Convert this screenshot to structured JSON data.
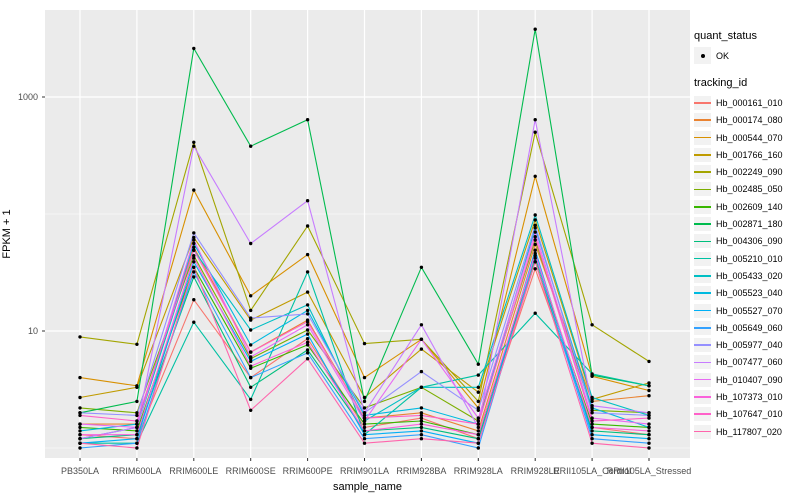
{
  "chart_data": {
    "type": "line",
    "title": "",
    "xlabel": "sample_name",
    "ylabel": "FPKM + 1",
    "y_scale": "log10",
    "ylim": [
      0.82,
      5500
    ],
    "grid": true,
    "legend_position": "right",
    "panel_bg": "#EBEBEB",
    "gridline_color": "#FFFFFF",
    "point_color": "#000000",
    "y_axis_ticks": [
      {
        "label": "1000",
        "value": 1000
      },
      {
        "label": "10",
        "value": 10
      }
    ],
    "y_minor_gridlines": [
      1,
      100
    ],
    "categories": [
      "PB350LA",
      "RRIM600LA",
      "RRIM600LE",
      "RRIM600SE",
      "RRIM600PE",
      "RRIM901LA",
      "RRIM928BA",
      "RRIM928LA",
      "RRIM928LE",
      "RRII105LA_Control",
      "RRII105LA_Stressed"
    ],
    "series": [
      {
        "name": "Hb_000161_010",
        "color": "#F8766D",
        "values": [
          1.3,
          1.2,
          18.5,
          4.0,
          8.6,
          1.5,
          1.8,
          1.2,
          34,
          1.5,
          1.3
        ]
      },
      {
        "name": "Hb_000174_080",
        "color": "#EA8331",
        "values": [
          1.6,
          1.6,
          52,
          6.6,
          12.4,
          1.8,
          2.0,
          1.4,
          55,
          2.5,
          2.8
        ]
      },
      {
        "name": "Hb_000544_070",
        "color": "#D89000",
        "values": [
          4.0,
          3.4,
          160,
          20,
          45,
          4.0,
          8.5,
          2.2,
          210,
          4.1,
          3.1
        ]
      },
      {
        "name": "Hb_001766_160",
        "color": "#C09B00",
        "values": [
          2.7,
          3.3,
          63,
          12.4,
          21.5,
          2.7,
          7.0,
          3.0,
          89,
          2.6,
          3.6
        ]
      },
      {
        "name": "Hb_002249_090",
        "color": "#A3A500",
        "values": [
          8.9,
          7.7,
          410,
          15,
          79,
          7.8,
          8.5,
          2.5,
          500,
          11.3,
          5.5
        ]
      },
      {
        "name": "Hb_002485_050",
        "color": "#7CAE00",
        "values": [
          2.2,
          2.0,
          44,
          5.8,
          10.2,
          2.2,
          3.3,
          1.7,
          60,
          2.1,
          2.0
        ]
      },
      {
        "name": "Hb_002609_140",
        "color": "#39B600",
        "values": [
          1.5,
          1.4,
          35,
          4.8,
          7.6,
          1.6,
          1.7,
          1.3,
          42,
          1.6,
          1.5
        ]
      },
      {
        "name": "Hb_002871_180",
        "color": "#00BB4E",
        "values": [
          2.0,
          2.5,
          2600,
          380,
          640,
          2.5,
          35,
          5.2,
          3800,
          4.2,
          3.4
        ]
      },
      {
        "name": "Hb_004306_090",
        "color": "#00BF7D",
        "values": [
          1.2,
          1.3,
          29,
          3.3,
          6.9,
          1.4,
          1.5,
          1.2,
          39,
          1.4,
          1.3
        ]
      },
      {
        "name": "Hb_005210_010",
        "color": "#00C1A3",
        "values": [
          1.1,
          1.1,
          11.9,
          2.6,
          32,
          1.3,
          3.3,
          4.2,
          14.2,
          4.3,
          3.4
        ]
      },
      {
        "name": "Hb_005433_020",
        "color": "#00BFC4",
        "values": [
          1.2,
          1.5,
          49,
          10.2,
          16.7,
          1.7,
          3.3,
          3.3,
          98,
          2.7,
          1.9
        ]
      },
      {
        "name": "Hb_005523_040",
        "color": "#00BAE0",
        "values": [
          1.4,
          1.6,
          56,
          7.6,
          15.0,
          1.9,
          2.2,
          1.6,
          76,
          2.2,
          1.5
        ]
      },
      {
        "name": "Hb_005527_070",
        "color": "#00B0F6",
        "values": [
          1.1,
          1.2,
          39,
          5.5,
          9.4,
          1.3,
          1.4,
          1.1,
          49,
          1.3,
          1.2
        ]
      },
      {
        "name": "Hb_005649_060",
        "color": "#35A2FF",
        "values": [
          1.0,
          1.1,
          32,
          4.0,
          6.5,
          1.2,
          1.3,
          1.0,
          44,
          1.2,
          1.1
        ]
      },
      {
        "name": "Hb_005977_040",
        "color": "#9590FF",
        "values": [
          2.0,
          1.9,
          69,
          12.9,
          14.0,
          2.0,
          4.5,
          2.1,
          80,
          2.0,
          1.9
        ]
      },
      {
        "name": "Hb_007477_060",
        "color": "#C77CFF",
        "values": [
          1.2,
          1.5,
          380,
          56,
          130,
          2.0,
          11.3,
          1.5,
          640,
          2.3,
          2.0
        ]
      },
      {
        "name": "Hb_010407_090",
        "color": "#E76BF3",
        "values": [
          1.6,
          1.5,
          60,
          6.0,
          11.3,
          1.7,
          8.5,
          1.8,
          70,
          1.8,
          1.6
        ]
      },
      {
        "name": "Hb_107373_010",
        "color": "#FA62DB",
        "values": [
          1.3,
          1.3,
          42,
          5.0,
          8.0,
          1.4,
          1.6,
          1.3,
          46,
          1.5,
          1.4
        ]
      },
      {
        "name": "Hb_107647_010",
        "color": "#FF61C9",
        "values": [
          1.9,
          1.7,
          49,
          6.6,
          12.0,
          1.8,
          1.9,
          1.6,
          64,
          1.7,
          1.8
        ]
      },
      {
        "name": "Hb_117807_020",
        "color": "#FF65AC",
        "values": [
          1.1,
          1.0,
          35,
          2.1,
          5.8,
          1.1,
          1.2,
          1.1,
          39,
          1.1,
          1.0
        ]
      }
    ]
  },
  "legend": {
    "quant_status_title": "quant_status",
    "ok_label": "OK",
    "tracking_id_title": "tracking_id"
  }
}
